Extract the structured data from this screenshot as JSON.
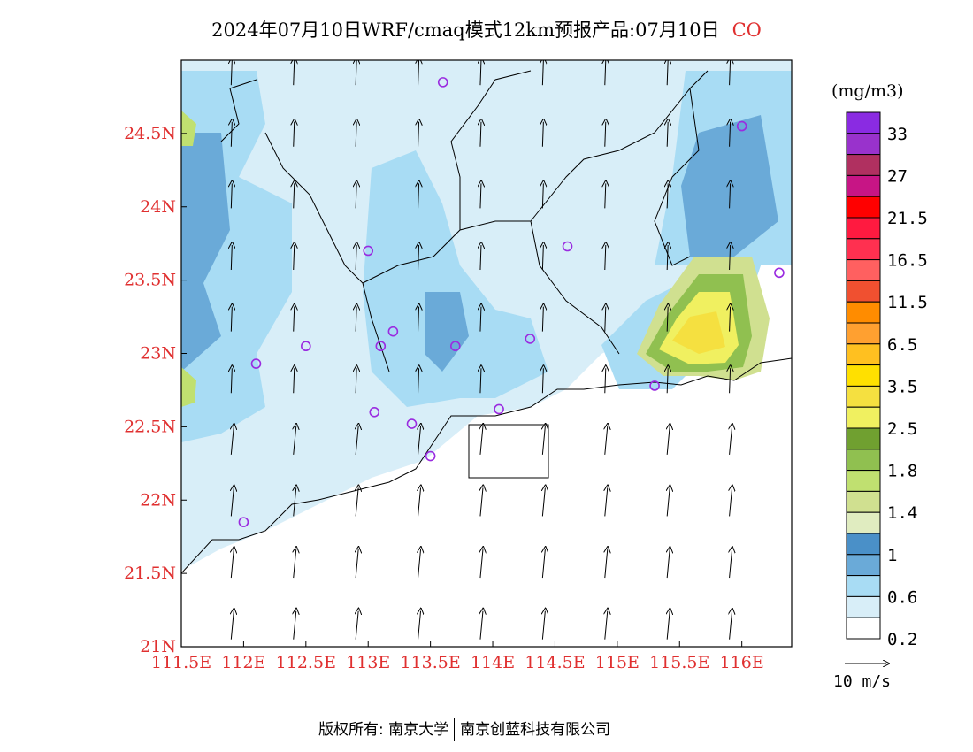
{
  "title": {
    "main": "2024年07月10日WRF/cmaq模式12km预报产品:07月10日",
    "species": "CO"
  },
  "axes": {
    "x_ticks": [
      "111.5E",
      "112E",
      "112.5E",
      "113E",
      "113.5E",
      "114E",
      "114.5E",
      "115E",
      "115.5E",
      "116E"
    ],
    "x_values": [
      111.5,
      112,
      112.5,
      113,
      113.5,
      114,
      114.5,
      115,
      115.5,
      116
    ],
    "y_ticks": [
      "24.5N",
      "24N",
      "23.5N",
      "23N",
      "22.5N",
      "22N",
      "21.5N",
      "21N"
    ],
    "y_values": [
      24.5,
      24,
      23.5,
      23,
      22.5,
      22,
      21.5,
      21
    ],
    "lon_range": [
      111.5,
      116.4
    ],
    "lat_range": [
      21.0,
      25.0
    ],
    "tick_color": "#e03030"
  },
  "legend": {
    "unit": "(mg/m3)",
    "labels": [
      "33",
      "27",
      "21.5",
      "16.5",
      "11.5",
      "6.5",
      "3.5",
      "2.5",
      "1.8",
      "1.4",
      "1",
      "0.6",
      "0.2"
    ],
    "colors": [
      "#8a2be2",
      "#9932cc",
      "#b03060",
      "#c71585",
      "#ff0000",
      "#ff1a40",
      "#ff3050",
      "#ff6060",
      "#f05030",
      "#ff8c00",
      "#ffa030",
      "#ffc020",
      "#ffe000",
      "#f5e040",
      "#f0f060",
      "#70a030",
      "#90c050",
      "#c0e070",
      "#d0e090",
      "#e0ecc0",
      "#4a90c8",
      "#6aaad8",
      "#a8dcf4",
      "#d8eef8",
      "#ffffff"
    ]
  },
  "wind": {
    "reference_label": "10 m/s"
  },
  "stations": [
    {
      "lon": 113.6,
      "lat": 24.85
    },
    {
      "lon": 116.0,
      "lat": 24.55
    },
    {
      "lon": 113.0,
      "lat": 23.7
    },
    {
      "lon": 114.6,
      "lat": 23.73
    },
    {
      "lon": 116.3,
      "lat": 23.55
    },
    {
      "lon": 112.5,
      "lat": 23.05
    },
    {
      "lon": 113.1,
      "lat": 23.05
    },
    {
      "lon": 113.2,
      "lat": 23.15
    },
    {
      "lon": 113.7,
      "lat": 23.05
    },
    {
      "lon": 114.3,
      "lat": 23.1
    },
    {
      "lon": 112.1,
      "lat": 22.93
    },
    {
      "lon": 113.05,
      "lat": 22.6
    },
    {
      "lon": 113.35,
      "lat": 22.52
    },
    {
      "lon": 114.05,
      "lat": 22.62
    },
    {
      "lon": 115.3,
      "lat": 22.78
    },
    {
      "lon": 113.5,
      "lat": 22.3
    },
    {
      "lon": 112.0,
      "lat": 21.85
    }
  ],
  "colors": {
    "station": "#9a2be0",
    "frame": "#000000"
  },
  "footer": {
    "left": "版权所有: 南京大学",
    "right": "南京创蓝科技有限公司"
  }
}
